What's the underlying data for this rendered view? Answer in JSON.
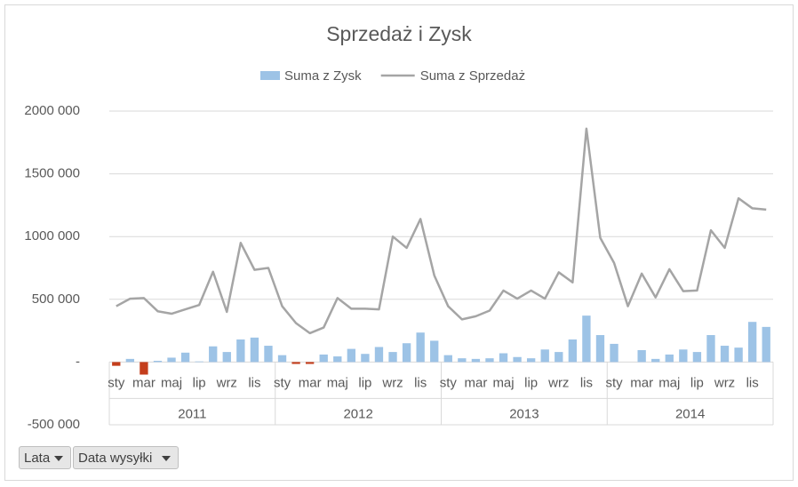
{
  "chart_data": {
    "type": "combo",
    "title": "Sprzedaż i Zysk",
    "categories": [
      "sty",
      null,
      "mar",
      null,
      "maj",
      null,
      "lip",
      null,
      "wrz",
      null,
      "lis",
      null,
      "sty",
      null,
      "mar",
      null,
      "maj",
      null,
      "lip",
      null,
      "wrz",
      null,
      "lis",
      null,
      "sty",
      null,
      "mar",
      null,
      "maj",
      null,
      "lip",
      null,
      "wrz",
      null,
      "lis",
      null,
      "sty",
      null,
      "mar",
      null,
      "maj",
      null,
      "lip",
      null,
      "wrz",
      null,
      "lis",
      null
    ],
    "category_groups": [
      "2011",
      "2012",
      "2013",
      "2014"
    ],
    "series": [
      {
        "name": "Suma z Zysk",
        "type": "bar",
        "color": "#9dc3e6",
        "negative_color": "#c43e1c",
        "values": [
          -30000,
          25000,
          -100000,
          10000,
          35000,
          75000,
          5000,
          125000,
          80000,
          180000,
          195000,
          130000,
          55000,
          -15000,
          -15000,
          60000,
          45000,
          105000,
          65000,
          120000,
          80000,
          150000,
          235000,
          170000,
          55000,
          30000,
          25000,
          30000,
          70000,
          40000,
          30000,
          100000,
          80000,
          180000,
          370000,
          215000,
          145000,
          0,
          95000,
          25000,
          60000,
          100000,
          80000,
          215000,
          130000,
          115000,
          320000,
          280000
        ]
      },
      {
        "name": "Suma z Sprzedaż",
        "type": "line",
        "color": "#a5a5a5",
        "values": [
          445000,
          505000,
          510000,
          405000,
          385000,
          420000,
          455000,
          720000,
          400000,
          950000,
          735000,
          750000,
          445000,
          310000,
          230000,
          275000,
          510000,
          425000,
          425000,
          420000,
          1000000,
          910000,
          1140000,
          690000,
          445000,
          340000,
          365000,
          410000,
          570000,
          505000,
          570000,
          505000,
          715000,
          635000,
          1860000,
          990000,
          790000,
          445000,
          705000,
          515000,
          740000,
          565000,
          570000,
          1050000,
          910000,
          1305000,
          1225000,
          1215000
        ]
      }
    ],
    "ylim": [
      -500000,
      2000000
    ],
    "yticks": [
      {
        "value": -500000,
        "label": "-500 000"
      },
      {
        "value": 0,
        "label": "-"
      },
      {
        "value": 500000,
        "label": "500 000"
      },
      {
        "value": 1000000,
        "label": "1000 000"
      },
      {
        "value": 1500000,
        "label": "1500 000"
      },
      {
        "value": 2000000,
        "label": "2000 000"
      }
    ],
    "grid": true,
    "legend": "top"
  },
  "field_buttons": [
    "Lata",
    "Data wysyłki"
  ]
}
